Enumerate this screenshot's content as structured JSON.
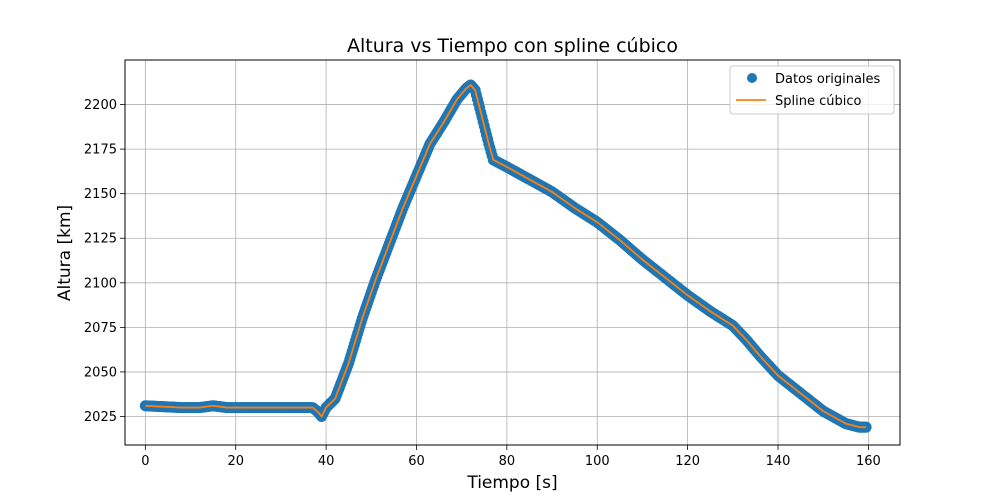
{
  "chart_data": {
    "type": "line",
    "title": "Altura vs Tiempo con spline cúbico",
    "xlabel": "Tiempo [s]",
    "ylabel": "Altura [km]",
    "xlim": [
      -4.5,
      167
    ],
    "ylim": [
      2009,
      2225
    ],
    "xticks": [
      0,
      20,
      40,
      60,
      80,
      100,
      120,
      140,
      160
    ],
    "yticks": [
      2025,
      2050,
      2075,
      2100,
      2125,
      2150,
      2175,
      2200
    ],
    "grid": true,
    "legend_position": "top-right",
    "legend": [
      "Datos originales",
      "Spline cúbico"
    ],
    "series": [
      {
        "name": "Datos originales",
        "style": "scatter",
        "color": "#1f77b4",
        "x": [
          0,
          4,
          8,
          12,
          15,
          18,
          22,
          26,
          30,
          34,
          37,
          38,
          39,
          40,
          42,
          45,
          48,
          51,
          54,
          57,
          60,
          63,
          66,
          69,
          71,
          72,
          73,
          74,
          75,
          76,
          77,
          80,
          85,
          90,
          95,
          100,
          105,
          110,
          115,
          120,
          125,
          130,
          133,
          136,
          140,
          145,
          150,
          155,
          158,
          159.5
        ],
        "y": [
          2031,
          2030.5,
          2030,
          2030,
          2031,
          2030,
          2030,
          2030,
          2030,
          2030,
          2030,
          2028,
          2025,
          2030,
          2035,
          2055,
          2080,
          2102,
          2122,
          2142,
          2160,
          2178,
          2190,
          2203,
          2209,
          2211,
          2208,
          2198,
          2188,
          2178,
          2169,
          2165,
          2158,
          2151,
          2142,
          2134,
          2124,
          2113,
          2103,
          2093,
          2084,
          2076,
          2068,
          2059,
          2048,
          2038,
          2028,
          2021,
          2019,
          2019
        ]
      },
      {
        "name": "Spline cúbico",
        "style": "line",
        "color": "#ff7f0e",
        "x": [
          0,
          4,
          8,
          12,
          15,
          18,
          22,
          26,
          30,
          34,
          37,
          38,
          39,
          40,
          42,
          45,
          48,
          51,
          54,
          57,
          60,
          63,
          66,
          69,
          71,
          72,
          73,
          74,
          75,
          76,
          77,
          80,
          85,
          90,
          95,
          100,
          105,
          110,
          115,
          120,
          125,
          130,
          133,
          136,
          140,
          145,
          150,
          155,
          158,
          159.5
        ],
        "y": [
          2031,
          2030.5,
          2030,
          2030,
          2031,
          2030,
          2030,
          2030,
          2030,
          2030,
          2030,
          2028,
          2025,
          2030,
          2035,
          2055,
          2080,
          2102,
          2122,
          2142,
          2160,
          2178,
          2190,
          2203,
          2209,
          2211,
          2208,
          2198,
          2188,
          2178,
          2169,
          2165,
          2158,
          2151,
          2142,
          2134,
          2124,
          2113,
          2103,
          2093,
          2084,
          2076,
          2068,
          2059,
          2048,
          2038,
          2028,
          2021,
          2019,
          2019
        ]
      }
    ]
  }
}
